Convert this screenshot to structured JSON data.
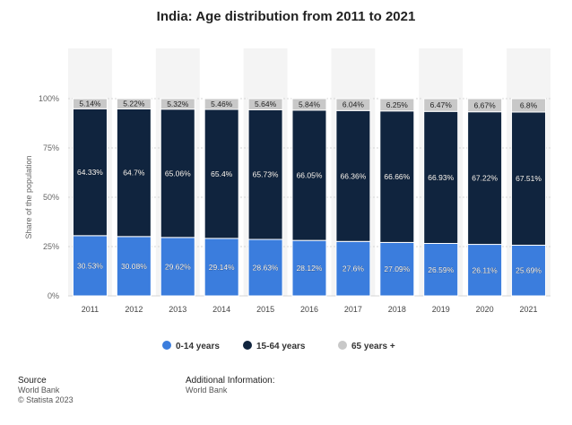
{
  "colors": {
    "young": "#3b7ddd",
    "working": "#10243e",
    "old": "#c8c8c8",
    "band": "#f4f4f4",
    "grid": "#d6d6d6"
  },
  "chart_data": {
    "type": "bar",
    "stacked": true,
    "title": "India: Age distribution from 2011 to 2021",
    "ylabel": "Share of the population",
    "xlabel": "",
    "ylim": [
      0,
      100
    ],
    "yticks": [
      "0%",
      "25%",
      "50%",
      "75%",
      "100%"
    ],
    "categories": [
      "2011",
      "2012",
      "2013",
      "2014",
      "2015",
      "2016",
      "2017",
      "2018",
      "2019",
      "2020",
      "2021"
    ],
    "series": [
      {
        "name": "0-14 years",
        "color_key": "young",
        "values": [
          30.53,
          30.08,
          29.62,
          29.14,
          28.63,
          28.12,
          27.6,
          27.09,
          26.59,
          26.11,
          25.69
        ],
        "labels": [
          "30.53%",
          "30.08%",
          "29.62%",
          "29.14%",
          "28.63%",
          "28.12%",
          "27.6%",
          "27.09%",
          "26.59%",
          "26.11%",
          "25.69%"
        ]
      },
      {
        "name": "15-64 years",
        "color_key": "working",
        "values": [
          64.33,
          64.7,
          65.06,
          65.4,
          65.73,
          66.05,
          66.36,
          66.66,
          66.93,
          67.22,
          67.51
        ],
        "labels": [
          "64.33%",
          "64.7%",
          "65.06%",
          "65.4%",
          "65.73%",
          "66.05%",
          "66.36%",
          "66.66%",
          "66.93%",
          "67.22%",
          "67.51%"
        ]
      },
      {
        "name": "65 years +",
        "color_key": "old",
        "values": [
          5.14,
          5.22,
          5.32,
          5.46,
          5.64,
          5.84,
          6.04,
          6.25,
          6.47,
          6.67,
          6.8
        ],
        "labels": [
          "5.14%",
          "5.22%",
          "5.32%",
          "5.46%",
          "5.64%",
          "5.84%",
          "6.04%",
          "6.25%",
          "6.47%",
          "6.67%",
          "6.8%"
        ]
      }
    ],
    "legend_position": "bottom",
    "grid": true
  },
  "footer": {
    "source_heading": "Source",
    "source_lines": [
      "World Bank",
      "© Statista 2023"
    ],
    "info_heading": "Additional Information:",
    "info_lines": [
      "World Bank"
    ]
  }
}
